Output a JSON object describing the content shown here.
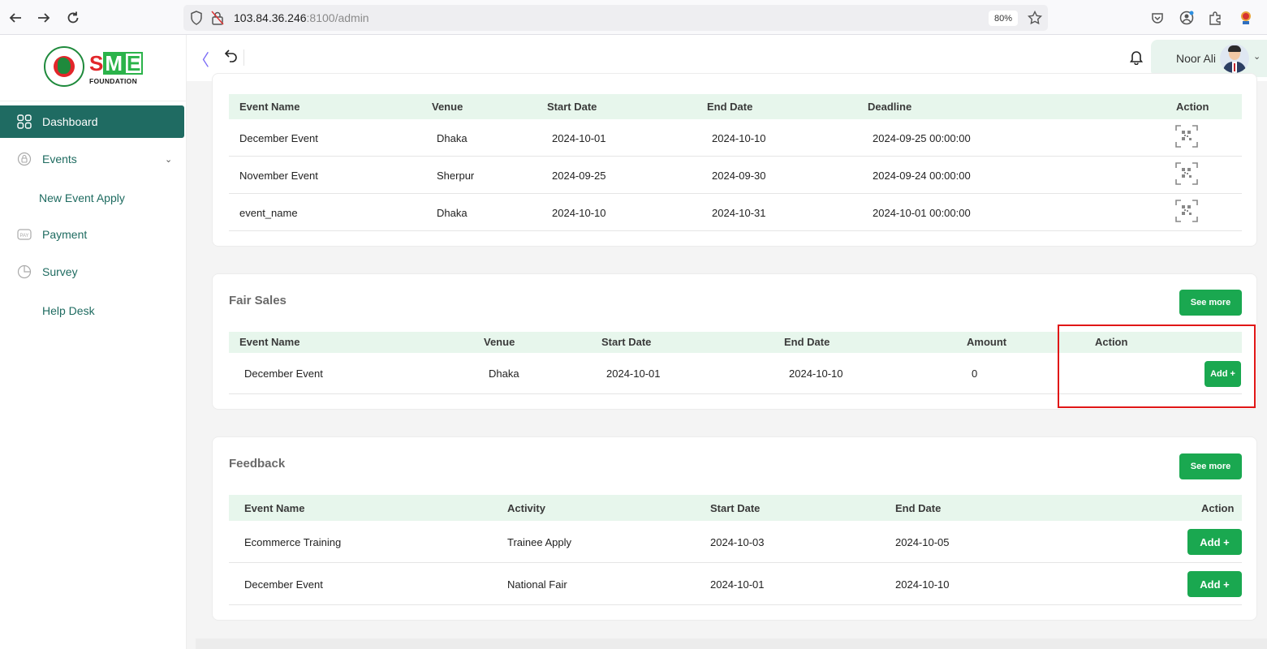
{
  "browser": {
    "url_host": "103.84.36.246",
    "url_rest": ":8100/admin",
    "zoom": "80%"
  },
  "sidebar": {
    "logo": {
      "s": "S",
      "m": "M",
      "e": "E",
      "foundation": "FOUNDATION"
    },
    "items": [
      {
        "label": "Dashboard",
        "icon": "grid-icon",
        "active": true
      },
      {
        "label": "Events",
        "icon": "lock-circle-icon"
      },
      {
        "label": "New Event Apply"
      },
      {
        "label": "Payment",
        "icon": "payment-icon"
      },
      {
        "label": "Survey",
        "icon": "pie-chart-icon"
      },
      {
        "label": "Help Desk"
      }
    ]
  },
  "header": {
    "user_name": "Noor Ali"
  },
  "events_table": {
    "columns": [
      "Event Name",
      "Venue",
      "Start Date",
      "End Date",
      "Deadline",
      "Action"
    ],
    "rows": [
      {
        "name": "December Event",
        "venue": "Dhaka",
        "start": "2024-10-01",
        "end": "2024-10-10",
        "deadline": "2024-09-25 00:00:00"
      },
      {
        "name": "November Event",
        "venue": "Sherpur",
        "start": "2024-09-25",
        "end": "2024-09-30",
        "deadline": "2024-09-24 00:00:00"
      },
      {
        "name": "event_name",
        "venue": "Dhaka",
        "start": "2024-10-10",
        "end": "2024-10-31",
        "deadline": "2024-10-01 00:00:00"
      }
    ]
  },
  "fair_sales": {
    "title": "Fair Sales",
    "see_more": "See more",
    "columns": [
      "Event Name",
      "Venue",
      "Start Date",
      "End Date",
      "Amount",
      "Action"
    ],
    "rows": [
      {
        "name": "December Event",
        "venue": "Dhaka",
        "start": "2024-10-01",
        "end": "2024-10-10",
        "amount": "0",
        "action": "Add +"
      }
    ]
  },
  "feedback": {
    "title": "Feedback",
    "see_more": "See more",
    "columns": [
      "Event Name",
      "Activity",
      "Start Date",
      "End Date",
      "Action"
    ],
    "rows": [
      {
        "name": "Ecommerce Training",
        "activity": "Trainee Apply",
        "start": "2024-10-03",
        "end": "2024-10-05",
        "action": "Add +"
      },
      {
        "name": "December Event",
        "activity": "National Fair",
        "start": "2024-10-01",
        "end": "2024-10-10",
        "action": "Add +"
      }
    ]
  },
  "colors": {
    "brand_green": "#1f6b62",
    "button_green": "#1aa850",
    "header_row": "#e7f6ec",
    "highlight": "#e01616"
  }
}
